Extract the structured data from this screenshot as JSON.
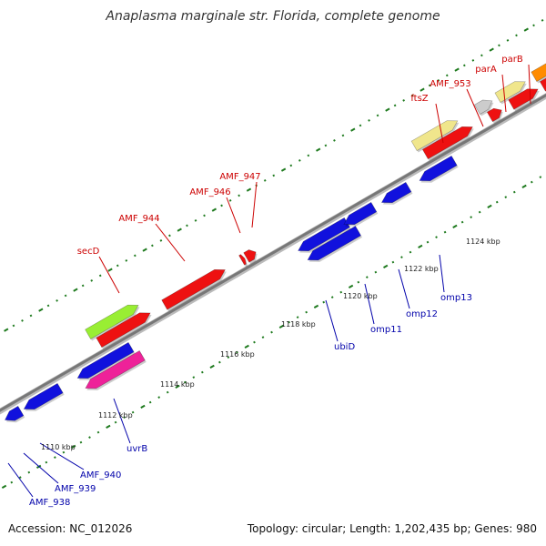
{
  "title": "Anaplasma marginale str. Florida, complete genome",
  "footer": {
    "accession": "Accession: NC_012026",
    "topology": "Topology: circular; Length: 1,202,435 bp; Genes: 980"
  },
  "colors": {
    "backbone": "#888888",
    "dots": "#1e7a1e",
    "forward_label": "#cc0000",
    "reverse_label": "#0000aa"
  },
  "tick_labels": [
    "1110 kbp",
    "1112 kbp",
    "1114 kbp",
    "1116 kbp",
    "1118 kbp",
    "1120 kbp",
    "1122 kbp",
    "1124 kbp"
  ],
  "forward_genes": [
    {
      "label": "secD",
      "color": "#99ee33"
    },
    {
      "label": "",
      "color": "#ee1111"
    },
    {
      "label": "AMF_944",
      "color": "#ee1111"
    },
    {
      "label": "AMF_946",
      "color": "#ee1111"
    },
    {
      "label": "AMF_947",
      "color": "#ee1111"
    },
    {
      "label": "ftsZ",
      "color": "#f0e68c"
    },
    {
      "label": "",
      "color": "#ee1111"
    },
    {
      "label": "AMF_953",
      "color": "#cccccc"
    },
    {
      "label": "parA",
      "color": "#f0e68c"
    },
    {
      "label": "parB",
      "color": "#ff8c00"
    }
  ],
  "reverse_genes": [
    {
      "label": "AMF_938",
      "color": "#1111dd"
    },
    {
      "label": "AMF_939",
      "color": "#1111dd"
    },
    {
      "label": "AMF_940",
      "color": "#1111dd"
    },
    {
      "label": "uvrB",
      "color": "#ee2299"
    },
    {
      "label": "ubiD",
      "color": "#1111dd"
    },
    {
      "label": "omp11",
      "color": "#1111dd"
    },
    {
      "label": "omp12",
      "color": "#1111dd"
    },
    {
      "label": "omp13",
      "color": "#1111dd"
    }
  ]
}
